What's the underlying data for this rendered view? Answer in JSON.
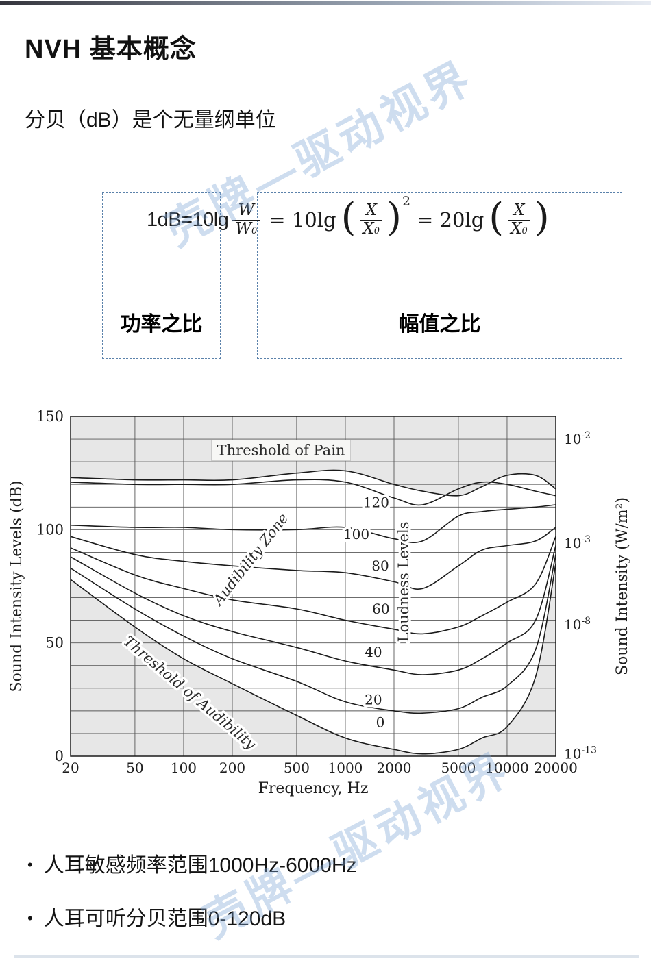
{
  "page": {
    "title": "NVH 基本概念",
    "subtitle": "分贝（dB）是个无量纲单位",
    "watermark": "壳牌—驱动视界"
  },
  "formula": {
    "lhs": "1dB=10lg",
    "num1": "W",
    "den1": "W",
    "den1_sub": "0",
    "eq1": "= 10lg",
    "num2": "X",
    "den2": "X",
    "den2_sub": "0",
    "exponent": "2",
    "eq2": "= 20lg",
    "num3": "X",
    "den3": "X",
    "den3_sub": "0",
    "label_left": "功率之比",
    "label_right": "幅值之比"
  },
  "bullets": [
    {
      "marker": "•",
      "text": "人耳敏感频率范围1000Hz-6000Hz"
    },
    {
      "marker": "•",
      "text": "人耳可听分贝范围0-120dB"
    }
  ],
  "chart_data": {
    "type": "line",
    "xscale": "log",
    "xlim": [
      20,
      20000
    ],
    "ylim": [
      0,
      150
    ],
    "grid": true,
    "xlabel": "Frequency, Hz",
    "ylabel_left": "Sound Intensity Levels (dB)",
    "ylabel_right": "Sound Intensity (W/m²)",
    "x_ticks": [
      20,
      50,
      100,
      200,
      500,
      1000,
      2000,
      5000,
      10000,
      20000
    ],
    "y_ticks_left": [
      150,
      100,
      50,
      0
    ],
    "y_ticks_right": [
      {
        "base": "10",
        "exp": "-2",
        "db": 140
      },
      {
        "base": "10",
        "exp": "-3",
        "db": 94
      },
      {
        "base": "10",
        "exp": "-8",
        "db": 58
      },
      {
        "base": "10",
        "exp": "-13",
        "db": 1
      }
    ],
    "frequencies": [
      20,
      50,
      100,
      200,
      500,
      1000,
      2000,
      3000,
      5000,
      7000,
      10000,
      15000,
      20000
    ],
    "series": [
      {
        "name": "Threshold of Pain",
        "values": [
          123,
          122,
          122,
          122,
          125,
          126,
          120,
          117,
          115,
          119,
          124,
          124,
          118
        ]
      },
      {
        "name": "Loudness 120",
        "label": "120",
        "label_at": {
          "f": 1550,
          "db": 112
        },
        "values": [
          121,
          120,
          120,
          120,
          122,
          121,
          114,
          111,
          118,
          121,
          120,
          117,
          115
        ]
      },
      {
        "name": "Loudness 100",
        "label": "100",
        "label_at": {
          "f": 1170,
          "db": 98
        },
        "values": [
          102,
          101,
          101,
          100,
          100,
          101,
          96,
          95,
          106,
          108,
          109,
          110,
          111
        ]
      },
      {
        "name": "Loudness 80",
        "label": "80",
        "label_at": {
          "f": 1645,
          "db": 84
        },
        "values": [
          97,
          89,
          86,
          84,
          82,
          81,
          77,
          74,
          84,
          91,
          93,
          95,
          101
        ]
      },
      {
        "name": "Loudness 60",
        "label": "60",
        "label_at": {
          "f": 1660,
          "db": 65
        },
        "values": [
          92,
          80,
          74,
          69,
          65,
          60,
          56,
          54,
          57,
          62,
          68,
          76,
          97
        ]
      },
      {
        "name": "Loudness 40",
        "label": "40",
        "label_at": {
          "f": 1490,
          "db": 46
        },
        "values": [
          88,
          72,
          62,
          55,
          48,
          42,
          38,
          36,
          38,
          43,
          50,
          60,
          93
        ]
      },
      {
        "name": "Loudness 20",
        "label": "20",
        "label_at": {
          "f": 1490,
          "db": 25
        },
        "values": [
          83,
          65,
          53,
          43,
          33,
          24,
          20,
          19,
          21,
          26,
          31,
          47,
          89
        ]
      },
      {
        "name": "Threshold of Audibility",
        "label": "0",
        "label_at": {
          "f": 1645,
          "db": 15
        },
        "values": [
          78,
          57,
          43,
          32,
          18,
          8,
          3,
          1,
          3,
          8,
          13,
          35,
          85
        ]
      }
    ],
    "annotations": [
      {
        "text": "Threshold of Pain",
        "f": 400,
        "db": 135,
        "rot": 0,
        "style": "box"
      },
      {
        "text": "Audibility Zone",
        "f": 260,
        "db": 87,
        "rot": -52,
        "style": "italic"
      },
      {
        "text": "Threshold of Audibility",
        "f": 109,
        "db": 28,
        "rot": 40,
        "style": "italic"
      },
      {
        "text": "Loudness Levels",
        "f": 2290,
        "db": 77,
        "rot": -90,
        "style": "plain"
      }
    ]
  }
}
